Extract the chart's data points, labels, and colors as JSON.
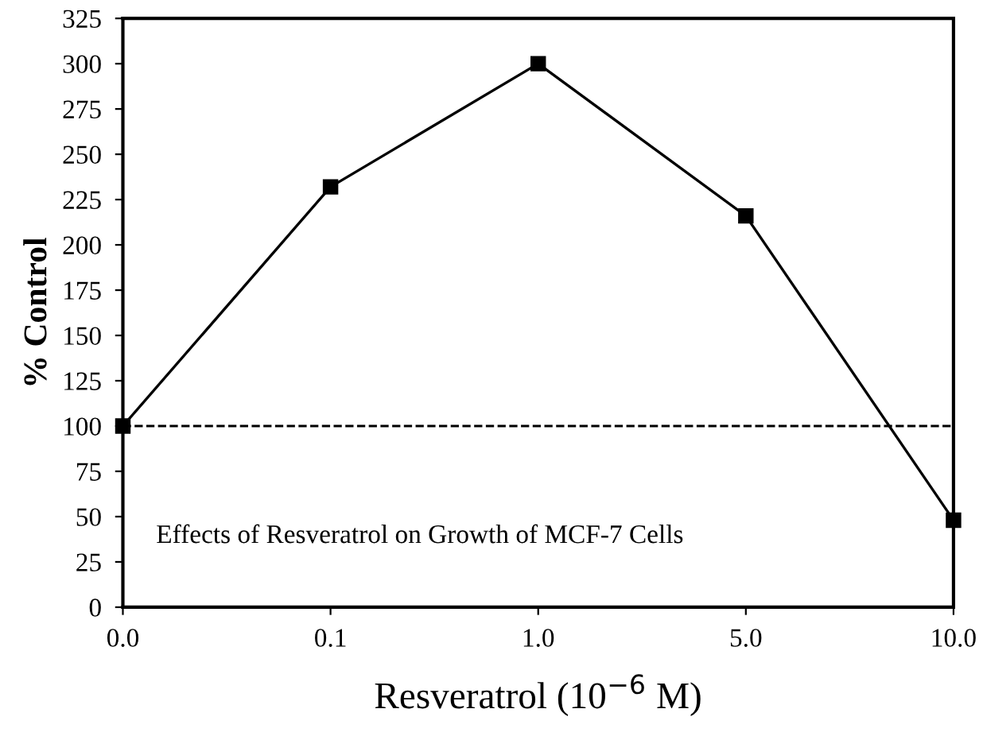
{
  "chart_data": {
    "type": "line",
    "xlabel": "Resveratrol (10$^{−6}$ M)",
    "ylabel": "% Control",
    "categories": [
      "0.0",
      "0.1",
      "1.0",
      "5.0",
      "10.0"
    ],
    "series": [
      {
        "color": "#000000",
        "values": [
          100,
          232,
          300,
          216,
          48
        ]
      }
    ],
    "marker": "square",
    "line_style": "solid",
    "ylim": [
      0,
      325
    ],
    "yticks": [
      0,
      25,
      50,
      75,
      100,
      125,
      150,
      175,
      200,
      225,
      250,
      275,
      300,
      325
    ],
    "ref_lines": [
      {
        "axis": "y",
        "value": 100,
        "color": "#000000",
        "line_style": "dashed"
      }
    ],
    "annotations": [
      "Effects of Resveratrol on Growth of MCF-7 Cells"
    ],
    "grid": false,
    "legend": false
  }
}
